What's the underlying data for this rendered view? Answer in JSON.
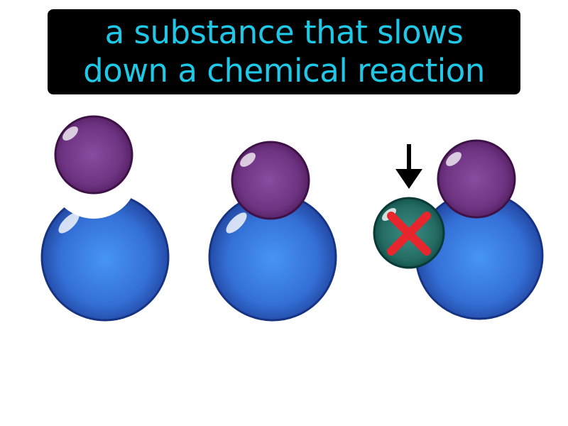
{
  "caption": {
    "line1": "a substance that slows",
    "line2": "down a chemical reaction"
  },
  "colors": {
    "caption_background": "#000000",
    "caption_text": "#1ec8e6",
    "enzyme_blue_center": "#4795f5",
    "enzyme_blue_edge": "#1f3f99",
    "substrate_purple_center": "#8a4c9e",
    "substrate_purple_edge": "#521d5e",
    "inhibitor_teal_center": "#3b8c83",
    "inhibitor_teal_edge": "#0d4a45",
    "inhibitor_x": "#e8262d",
    "arrow": "#000000"
  },
  "panels": [
    {
      "name": "separate",
      "icons": [
        "enzyme-with-active-site",
        "substrate-molecule"
      ]
    },
    {
      "name": "bound",
      "icons": [
        "enzyme",
        "substrate-molecule"
      ]
    },
    {
      "name": "inhibited",
      "icons": [
        "inhibitor-molecule",
        "x-mark",
        "down-arrow",
        "enzyme",
        "substrate-molecule"
      ]
    }
  ]
}
